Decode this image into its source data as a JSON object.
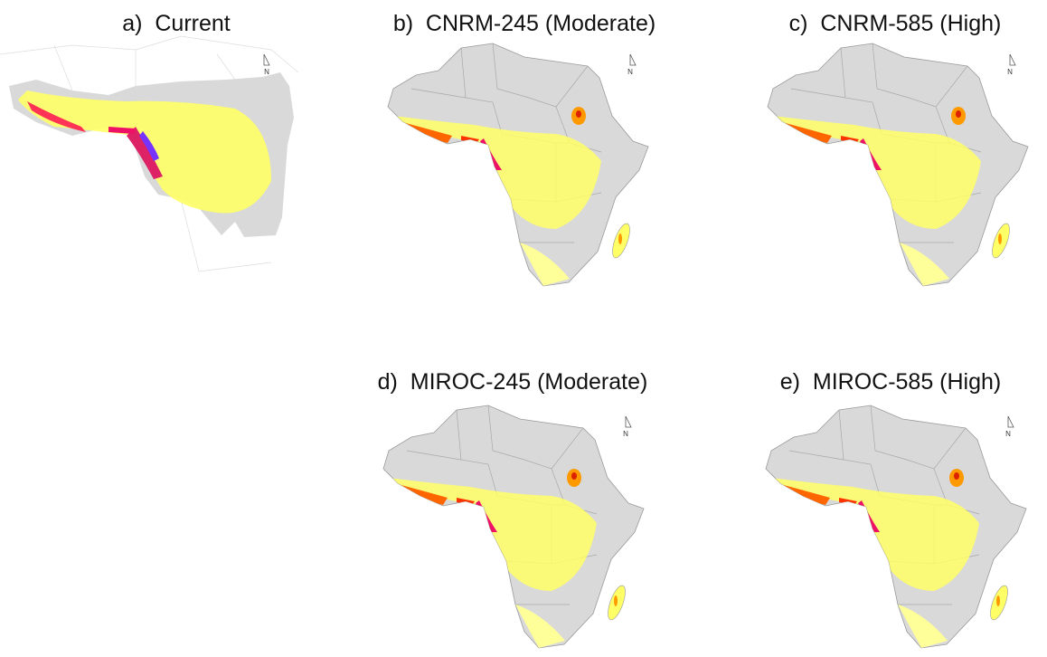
{
  "panels": [
    {
      "label": "a)  Current"
    },
    {
      "label": "b)  CNRM-245 (Moderate)"
    },
    {
      "label": "c)  CNRM-585 (High)"
    },
    {
      "label": "d)  MIROC-245 (Moderate)"
    },
    {
      "label": "e)  MIROC-585 (High)"
    }
  ],
  "north_label": "N"
}
